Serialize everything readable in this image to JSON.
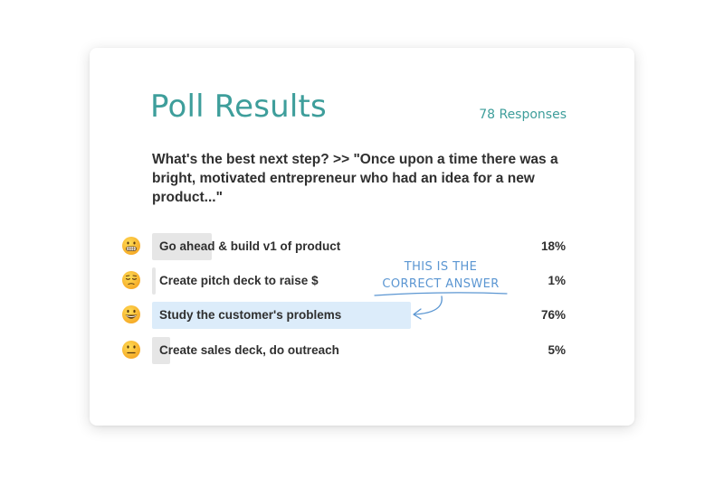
{
  "title": "Poll Results",
  "responses_label": "78 Responses",
  "question": "What's the best next step? >> \"Once upon a time there was a bright, motivated entrepreneur who had an idea for a new product...\"",
  "options": [
    {
      "emoji": "grimacing-face-icon",
      "label": "Go ahead & build v1 of product",
      "percent_label": "18%",
      "percent": 18,
      "highlight": false
    },
    {
      "emoji": "relieved-face-icon",
      "label": "Create pitch deck to raise $",
      "percent_label": "1%",
      "percent": 1,
      "highlight": false
    },
    {
      "emoji": "grinning-face-icon",
      "label": "Study the customer's problems",
      "percent_label": "76%",
      "percent": 76,
      "highlight": true
    },
    {
      "emoji": "neutral-face-icon",
      "label": "Create sales deck, do outreach",
      "percent_label": "5%",
      "percent": 5,
      "highlight": false
    }
  ],
  "annotation": {
    "line1": "THIS IS THE",
    "line2": "CORRECT ANSWER"
  },
  "colors": {
    "accent": "#3e9e9b",
    "bar": "#e6e6e6",
    "bar_highlight": "#dcecfa",
    "annotation": "#5b96d2"
  }
}
